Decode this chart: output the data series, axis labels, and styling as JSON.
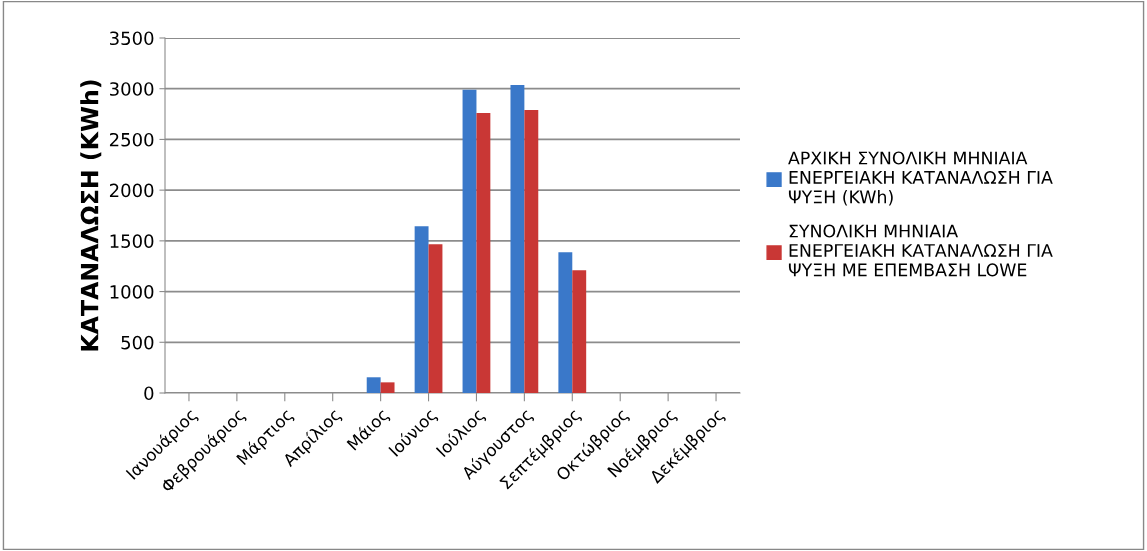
{
  "chart_data": {
    "type": "bar",
    "ylabel": "ΚΑΤΑΝΑΛΩΣΗ (KWh)",
    "categories": [
      "Ιανουάριος",
      "Φεβρουάριος",
      "Μάρτιος",
      "Απρίλιος",
      "Μάιος",
      "Ιούνιος",
      "Ιούλιος",
      "Αύγουστος",
      "Σεπτέμβριος",
      "Οκτώβριος",
      "Νοέμβριος",
      "Δεκέμβριος"
    ],
    "series": [
      {
        "name": "ΑΡΧΙΚΗ ΣΥΝΟΛΙΚΗ ΜΗΝΙΑΙΑ\nΕΝΕΡΓΕΙΑΚΗ ΚΑΤΑΝΑΛΩΣΗ ΓΙΑ\nΨΥΞΗ (KWh)",
        "color": "#3a78c9",
        "values": [
          0,
          0,
          0,
          0,
          155,
          1645,
          2990,
          3036,
          1388,
          0,
          0,
          0
        ]
      },
      {
        "name": "ΣΥΝΟΛΙΚΗ ΜΗΝΙΑΙΑ\nΕΝΕΡΓΕΙΑΚΗ ΚΑΤΑΝΑΛΩΣΗ ΓΙΑ\nΨΥΞΗ ΜΕ ΕΠΕΜΒΑΣΗ LOWE",
        "color": "#c93735",
        "values": [
          0,
          0,
          0,
          0,
          105,
          1467,
          2760,
          2790,
          1211,
          0,
          0,
          0
        ]
      }
    ],
    "ylim": [
      0,
      3500
    ],
    "yticks": [
      0,
      500,
      1000,
      1500,
      2000,
      2500,
      3000,
      3500
    ],
    "grid": "y",
    "legend": "right"
  }
}
